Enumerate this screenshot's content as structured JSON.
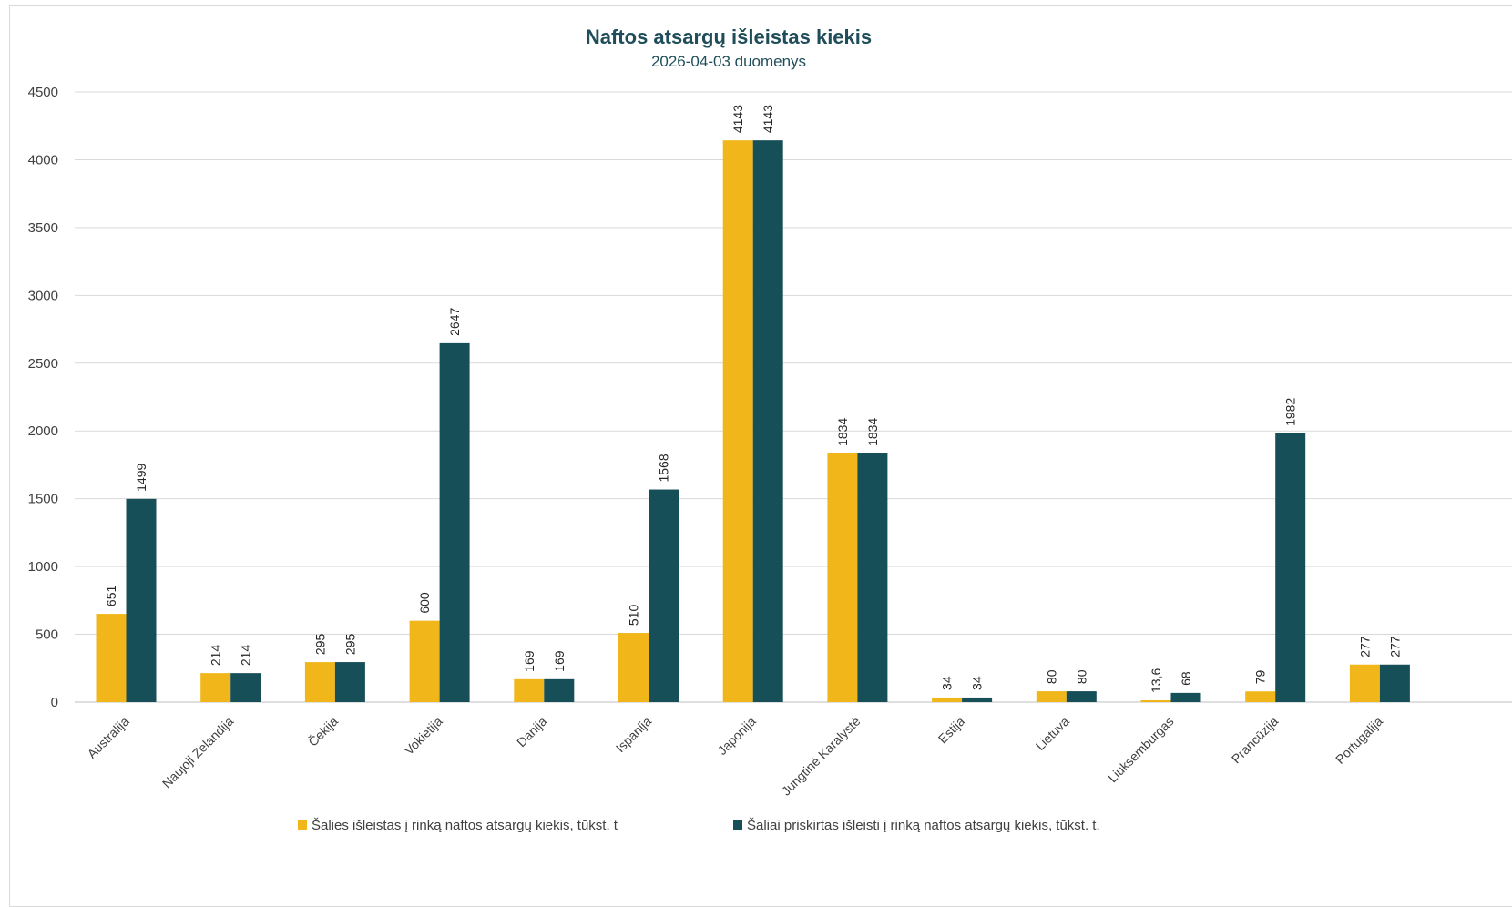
{
  "chart_data": {
    "type": "bar",
    "title": "Naftos atsargų išleistas kiekis",
    "subtitle": "2026-04-03 duomenys",
    "xlabel": "",
    "ylabel": "",
    "ylim": [
      0,
      4500
    ],
    "yticks": [
      "0",
      "500",
      "1000",
      "1500",
      "2000",
      "2500",
      "3000",
      "3500",
      "4000",
      "4500"
    ],
    "grid": true,
    "legend_position": "bottom",
    "categories": [
      "Australija",
      "Naujoji Zelandija",
      "Čekija",
      "Vokietija",
      "Danija",
      "Ispanija",
      "Japonija",
      "Jungtinė Karalystė",
      "Estija",
      "Lietuva",
      "Liuksemburgas",
      "Prancūzija",
      "Portugalija"
    ],
    "series": [
      {
        "name": "Šalies išleistas į rinką naftos atsargų kiekis, tūkst. t",
        "color": "#f0b61a",
        "values": [
          651,
          214,
          295,
          600,
          169,
          510,
          4143,
          1834,
          34,
          80,
          13.6,
          79,
          277
        ],
        "labels": [
          "651",
          "214",
          "295",
          "600",
          "169",
          "510",
          "4143",
          "1834",
          "34",
          "80",
          "13,6",
          "79",
          "277"
        ]
      },
      {
        "name": "Šaliai priskirtas išleisti į rinką naftos atsargų kiekis, tūkst. t.",
        "color": "#174f58",
        "values": [
          1499,
          214,
          295,
          2647,
          169,
          1568,
          4143,
          1834,
          34,
          80,
          68,
          1982,
          277
        ],
        "labels": [
          "1499",
          "214",
          "295",
          "2647",
          "169",
          "1568",
          "4143",
          "1834",
          "34",
          "80",
          "68",
          "1982",
          "277"
        ]
      }
    ]
  },
  "colors": {
    "grid": "#d9d9d9",
    "axis": "#bfbfbf",
    "title": "#1f4e5a",
    "top_strip": "#1a8a86"
  }
}
